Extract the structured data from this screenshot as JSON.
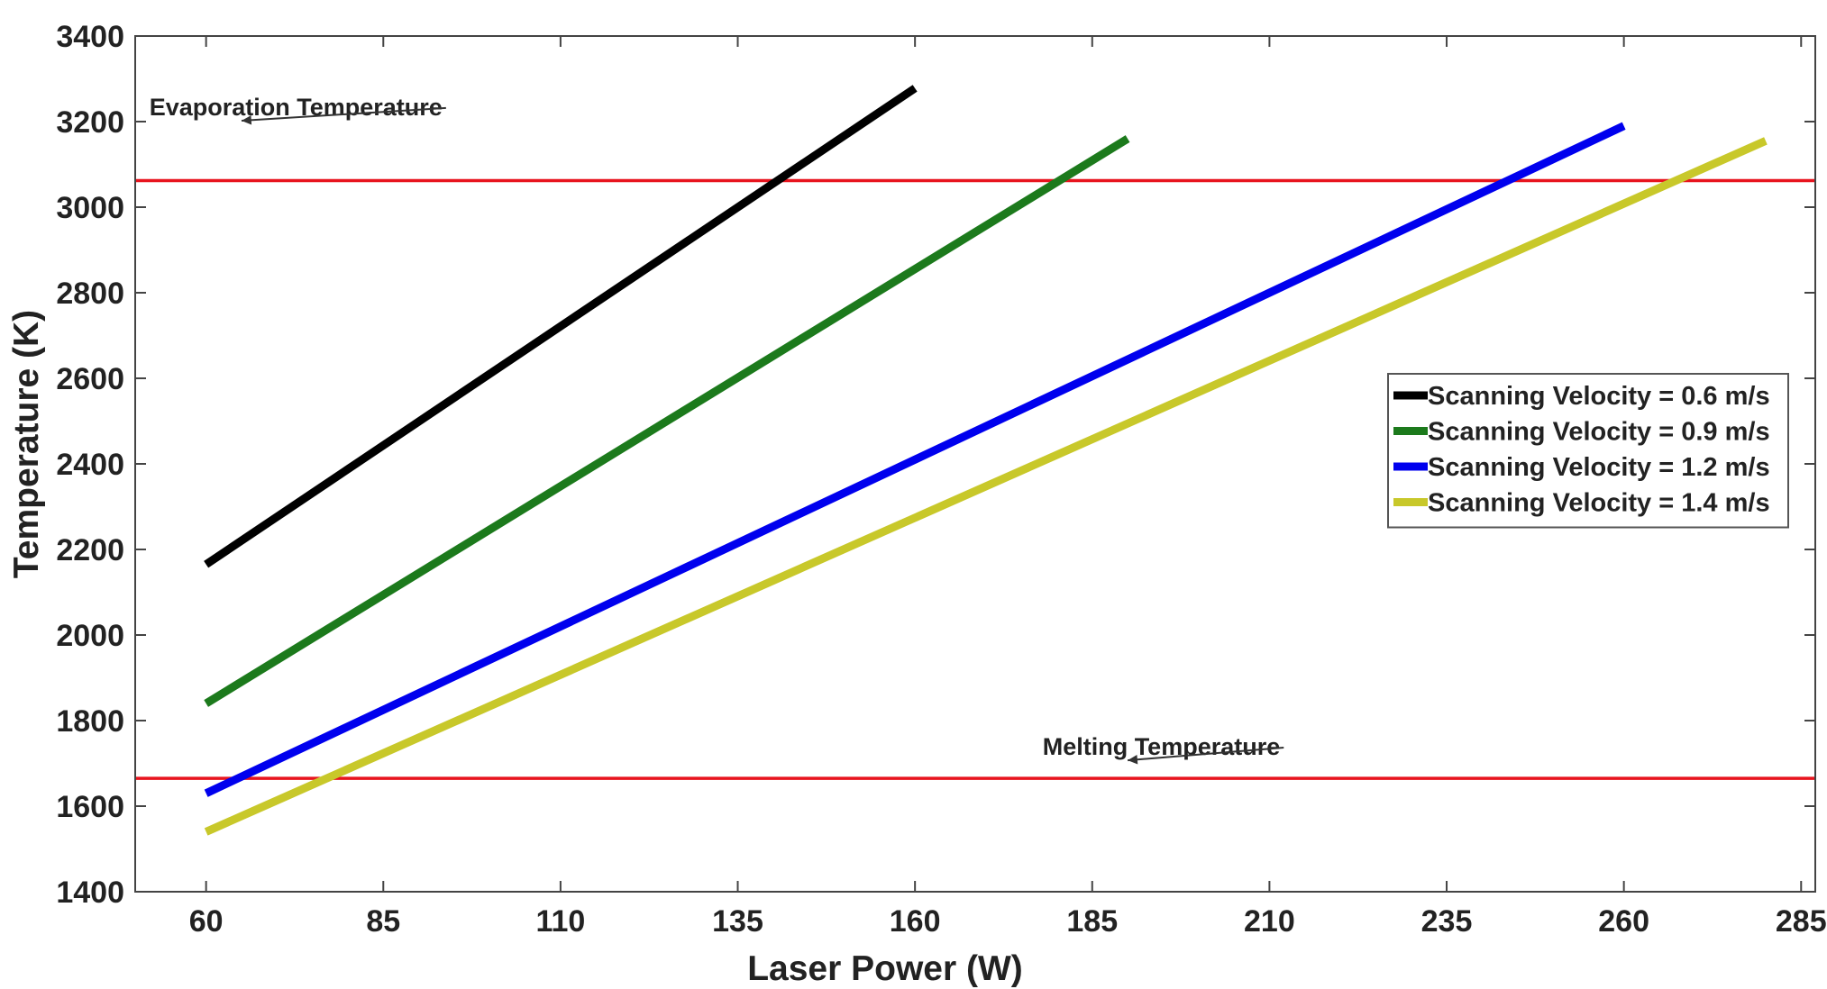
{
  "chart_data": {
    "type": "line",
    "title": "",
    "xlabel": "Laser Power (W)",
    "ylabel": "Temperature (K)",
    "xlim": [
      50,
      287
    ],
    "ylim": [
      1400,
      3400
    ],
    "xticks": [
      60,
      85,
      110,
      135,
      160,
      185,
      210,
      235,
      260,
      285
    ],
    "yticks": [
      1400,
      1600,
      1800,
      2000,
      2200,
      2400,
      2600,
      2800,
      3000,
      3200,
      3400
    ],
    "grid": false,
    "legend_position": "center-right",
    "series": [
      {
        "name": "Scanning Velocity = 0.6 m/s",
        "color": "#000000",
        "x": [
          60,
          160
        ],
        "y": [
          2165,
          3278
        ]
      },
      {
        "name": "Scanning Velocity = 0.9 m/s",
        "color": "#1c7a1c",
        "x": [
          60,
          190
        ],
        "y": [
          1840,
          3160
        ]
      },
      {
        "name": "Scanning Velocity = 1.2 m/s",
        "color": "#0000ee",
        "x": [
          60,
          260
        ],
        "y": [
          1630,
          3190
        ]
      },
      {
        "name": "Scanning Velocity = 1.4 m/s",
        "color": "#c8c82a",
        "x": [
          60,
          280
        ],
        "y": [
          1540,
          3155
        ]
      }
    ],
    "reference_lines": [
      {
        "name": "evaporation",
        "value": 3062,
        "color": "#e8141e"
      },
      {
        "name": "melting",
        "value": 1665,
        "color": "#e8141e"
      }
    ],
    "annotations": [
      {
        "name": "evaporation",
        "text": "Evaporation Temperature",
        "x": 52,
        "y": 3215,
        "arrow_to": [
          65,
          3160
        ]
      },
      {
        "name": "melting",
        "text": "Melting Temperature",
        "x": 178,
        "y": 1720,
        "arrow_to": [
          190,
          1665
        ]
      }
    ]
  }
}
